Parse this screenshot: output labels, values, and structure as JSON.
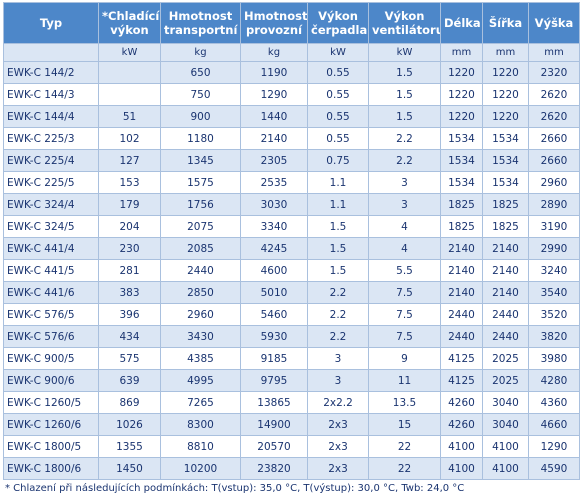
{
  "table": {
    "header": [
      [
        "Typ"
      ],
      [
        "*Chladící",
        "výkon"
      ],
      [
        "Hmotnost",
        "transportní"
      ],
      [
        "Hmotnost",
        "provozní"
      ],
      [
        "Výkon",
        "čerpadla"
      ],
      [
        "Výkon",
        "ventilátoru"
      ],
      [
        "Délka"
      ],
      [
        "Šířka"
      ],
      [
        "Výška"
      ]
    ],
    "units": [
      null,
      "kW",
      "kg",
      "kg",
      "kW",
      "kW",
      "mm",
      "mm",
      "mm"
    ],
    "rows": [
      [
        "EWK-C 144/2",
        null,
        650,
        1190,
        0.55,
        1.5,
        1220,
        1220,
        2320
      ],
      [
        "EWK-C 144/3",
        null,
        750,
        1290,
        0.55,
        1.5,
        1220,
        1220,
        2620
      ],
      [
        "EWK-C 144/4",
        51,
        900,
        1440,
        0.55,
        1.5,
        1220,
        1220,
        2620
      ],
      [
        "EWK-C 225/3",
        102,
        1180,
        2140,
        0.55,
        2.2,
        1534,
        1534,
        2660
      ],
      [
        "EWK-C 225/4",
        127,
        1345,
        2305,
        0.75,
        2.2,
        1534,
        1534,
        2660
      ],
      [
        "EWK-C 225/5",
        153,
        1575,
        2535,
        1.1,
        3,
        1534,
        1534,
        2960
      ],
      [
        "EWK-C 324/4",
        179,
        1756,
        3030,
        1.1,
        3,
        1825,
        1825,
        2890
      ],
      [
        "EWK-C 324/5",
        204,
        2075,
        3340,
        1.5,
        4,
        1825,
        1825,
        3190
      ],
      [
        "EWK-C 441/4",
        230,
        2085,
        4245,
        1.5,
        4,
        2140,
        2140,
        2990
      ],
      [
        "EWK-C 441/5",
        281,
        2440,
        4600,
        1.5,
        5.5,
        2140,
        2140,
        3240
      ],
      [
        "EWK-C 441/6",
        383,
        2850,
        5010,
        2.2,
        7.5,
        2140,
        2140,
        3540
      ],
      [
        "EWK-C 576/5",
        396,
        2960,
        5460,
        2.2,
        7.5,
        2440,
        2440,
        3520
      ],
      [
        "EWK-C 576/6",
        434,
        3430,
        5930,
        2.2,
        7.5,
        2440,
        2440,
        3820
      ],
      [
        "EWK-C 900/5",
        575,
        4385,
        9185,
        3,
        9,
        4125,
        2025,
        3980
      ],
      [
        "EWK-C 900/6",
        639,
        4995,
        9795,
        3,
        11,
        4125,
        2025,
        4280
      ],
      [
        "EWK-C 1260/5",
        869,
        7265,
        13865,
        "2x2.2",
        13.5,
        4260,
        3040,
        4360
      ],
      [
        "EWK-C 1260/6",
        1026,
        8300,
        14900,
        "2x3",
        15,
        4260,
        3040,
        4660
      ],
      [
        "EWK-C 1800/5",
        1355,
        8810,
        20570,
        "2x3",
        22,
        4100,
        4100,
        1290
      ],
      [
        "EWK-C 1800/6",
        1450,
        10200,
        23820,
        "2x3",
        22,
        4100,
        4100,
        4590
      ]
    ],
    "footnote": "* Chlazení při následujících podmínkách: T(vstup): 35,0 °C, T(výstup): 30,0 °C, Twb: 24,0 °C"
  }
}
